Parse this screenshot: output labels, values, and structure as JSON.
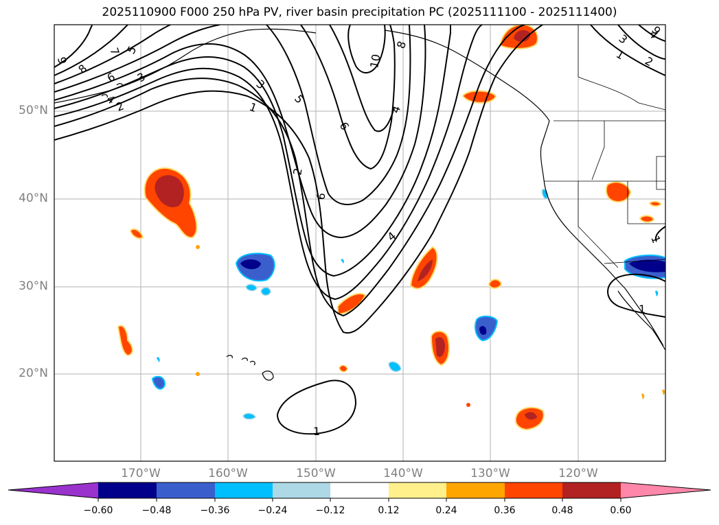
{
  "title": "2025110900 F000 250 hPa PV, river basin precipitation PC (2025111100 - 2025111400)",
  "lat_labels": [
    "50°N",
    "40°N",
    "30°N",
    "20°N"
  ],
  "lon_labels": [
    "170°W",
    "160°W",
    "150°W",
    "140°W",
    "130°W",
    "120°W"
  ],
  "contour_labels": [
    "1",
    "2",
    "3",
    "4",
    "5",
    "6",
    "7",
    "8",
    "9",
    "10"
  ],
  "colorbar": {
    "ticks": [
      "−0.60",
      "−0.48",
      "−0.36",
      "−0.24",
      "−0.12",
      "0.12",
      "0.24",
      "0.36",
      "0.48",
      "0.60"
    ],
    "colors": [
      "#9933cc",
      "#00008b",
      "#3a5fcd",
      "#00bfff",
      "#add8e6",
      "#ffffff",
      "#fff08c",
      "#ffa500",
      "#ff4500",
      "#b22222",
      "#ff88aa"
    ]
  },
  "colors": {
    "land_outline": "#000000",
    "grid": "#a0a0a0",
    "pv_contour": "#000000"
  }
}
